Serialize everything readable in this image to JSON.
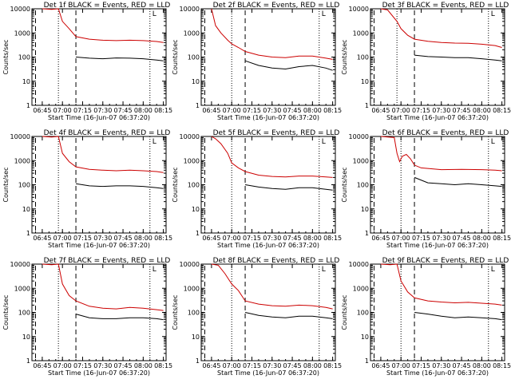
{
  "colors": {
    "events": "#000000",
    "lld": "#cc0000",
    "axis": "#000000",
    "background": "#ffffff"
  },
  "chart_data": [
    {
      "type": "line",
      "title": "Det 1f BLACK = Events, RED = LLD",
      "xlabel": "Start Time (16-Jun-07 06:37:20)",
      "ylabel": "Counts/sec",
      "y_scale": "log",
      "ylim": [
        1,
        10000
      ],
      "x_tick_labels": [
        "06:45",
        "07:00",
        "07:15",
        "07:30",
        "07:45",
        "08:00",
        "08:15"
      ],
      "y_tick_labels": [
        "1",
        "10",
        "100",
        "1000",
        "10000"
      ],
      "corner_mark": "L",
      "markers": {
        "dotted": [
          "06:57",
          "08:05"
        ],
        "dashed": [
          "06:40",
          "07:10"
        ]
      },
      "series": [
        {
          "name": "Events",
          "color": "#000000",
          "x": [
            "07:10",
            "07:20",
            "07:30",
            "07:40",
            "07:50",
            "08:00",
            "08:10",
            "08:15"
          ],
          "y": [
            100,
            90,
            85,
            92,
            90,
            85,
            75,
            70
          ]
        },
        {
          "name": "LLD",
          "color": "#cc0000",
          "x": [
            "06:45",
            "06:52",
            "06:57",
            "07:00",
            "07:05",
            "07:10",
            "07:20",
            "07:30",
            "07:40",
            "07:50",
            "08:00",
            "08:10",
            "08:15"
          ],
          "y": [
            10000,
            9500,
            10000,
            3000,
            1500,
            700,
            550,
            500,
            480,
            500,
            480,
            440,
            400
          ]
        }
      ]
    },
    {
      "type": "line",
      "title": "Det 2f BLACK = Events, RED = LLD",
      "xlabel": "Start Time (16-Jun-07 06:37:20)",
      "ylabel": "Counts/sec",
      "y_scale": "log",
      "ylim": [
        1,
        10000
      ],
      "x_tick_labels": [
        "06:45",
        "07:00",
        "07:15",
        "07:30",
        "07:45",
        "08:00",
        "08:15"
      ],
      "y_tick_labels": [
        "1",
        "10",
        "100",
        "1000",
        "10000"
      ],
      "corner_mark": "L",
      "markers": {
        "dotted": [
          "07:00",
          "08:05"
        ],
        "dashed": [
          "06:40",
          "07:10"
        ]
      },
      "series": [
        {
          "name": "Events",
          "color": "#000000",
          "x": [
            "07:10",
            "07:20",
            "07:30",
            "07:40",
            "07:50",
            "08:00",
            "08:10",
            "08:15"
          ],
          "y": [
            70,
            45,
            35,
            32,
            40,
            45,
            35,
            28
          ]
        },
        {
          "name": "LLD",
          "color": "#cc0000",
          "x": [
            "06:45",
            "06:48",
            "06:52",
            "06:57",
            "07:00",
            "07:05",
            "07:10",
            "07:20",
            "07:30",
            "07:40",
            "07:50",
            "08:00",
            "08:10",
            "08:15"
          ],
          "y": [
            10000,
            2000,
            1000,
            500,
            350,
            250,
            170,
            120,
            100,
            95,
            110,
            110,
            90,
            80
          ]
        }
      ]
    },
    {
      "type": "line",
      "title": "Det 3f BLACK = Events, RED = LLD",
      "xlabel": "Start Time (16-Jun-07 06:37:20)",
      "ylabel": "Counts/sec",
      "y_scale": "log",
      "ylim": [
        1,
        10000
      ],
      "x_tick_labels": [
        "06:45",
        "07:00",
        "07:15",
        "07:30",
        "07:45",
        "08:00",
        "08:15"
      ],
      "y_tick_labels": [
        "1",
        "10",
        "100",
        "1000",
        "10000"
      ],
      "corner_mark": "L",
      "markers": {
        "dotted": [
          "06:57",
          "08:05"
        ],
        "dashed": [
          "06:40",
          "07:10"
        ]
      },
      "series": [
        {
          "name": "Events",
          "color": "#000000",
          "x": [
            "07:10",
            "07:20",
            "07:30",
            "07:40",
            "07:50",
            "08:00",
            "08:10",
            "08:15"
          ],
          "y": [
            120,
            105,
            100,
            95,
            95,
            85,
            75,
            70
          ]
        },
        {
          "name": "LLD",
          "color": "#cc0000",
          "x": [
            "06:45",
            "06:50",
            "06:57",
            "07:00",
            "07:05",
            "07:10",
            "07:20",
            "07:30",
            "07:40",
            "07:50",
            "08:00",
            "08:10",
            "08:15"
          ],
          "y": [
            10000,
            9000,
            3000,
            1500,
            800,
            550,
            450,
            400,
            380,
            370,
            340,
            300,
            250
          ]
        }
      ]
    },
    {
      "type": "line",
      "title": "Det 4f BLACK = Events, RED = LLD",
      "xlabel": "Start Time (16-Jun-07 06:37:20)",
      "ylabel": "Counts/sec",
      "y_scale": "log",
      "ylim": [
        1,
        10000
      ],
      "x_tick_labels": [
        "06:45",
        "07:00",
        "07:15",
        "07:30",
        "07:45",
        "08:00",
        "08:15"
      ],
      "y_tick_labels": [
        "1",
        "10",
        "100",
        "1000",
        "10000"
      ],
      "corner_mark": "L",
      "markers": {
        "dotted": [
          "06:57",
          "08:05"
        ],
        "dashed": [
          "06:40",
          "07:10"
        ]
      },
      "series": [
        {
          "name": "Events",
          "color": "#000000",
          "x": [
            "07:10",
            "07:20",
            "07:30",
            "07:40",
            "07:50",
            "08:00",
            "08:10",
            "08:15"
          ],
          "y": [
            110,
            90,
            85,
            90,
            90,
            85,
            75,
            70
          ]
        },
        {
          "name": "LLD",
          "color": "#cc0000",
          "x": [
            "06:45",
            "06:52",
            "06:57",
            "07:00",
            "07:05",
            "07:10",
            "07:20",
            "07:30",
            "07:40",
            "07:50",
            "08:00",
            "08:10",
            "08:15"
          ],
          "y": [
            10000,
            9500,
            10000,
            2000,
            900,
            550,
            430,
            400,
            380,
            400,
            380,
            350,
            320
          ]
        }
      ]
    },
    {
      "type": "line",
      "title": "Det 5f BLACK = Events, RED = LLD",
      "xlabel": "Start Time (16-Jun-07 06:37:20)",
      "ylabel": "Counts/sec",
      "y_scale": "log",
      "ylim": [
        1,
        10000
      ],
      "x_tick_labels": [
        "06:45",
        "07:00",
        "07:15",
        "07:30",
        "07:45",
        "08:00",
        "08:15"
      ],
      "y_tick_labels": [
        "1",
        "10",
        "100",
        "1000",
        "10000"
      ],
      "corner_mark": "L",
      "markers": {
        "dotted": [
          "07:00",
          "08:05"
        ],
        "dashed": [
          "06:40",
          "07:10"
        ]
      },
      "series": [
        {
          "name": "Events",
          "color": "#000000",
          "x": [
            "07:10",
            "07:20",
            "07:30",
            "07:40",
            "07:50",
            "08:00",
            "08:10",
            "08:15"
          ],
          "y": [
            100,
            80,
            70,
            65,
            75,
            75,
            65,
            60
          ]
        },
        {
          "name": "LLD",
          "color": "#cc0000",
          "x": [
            "06:45",
            "06:48",
            "06:52",
            "06:57",
            "07:00",
            "07:05",
            "07:10",
            "07:20",
            "07:30",
            "07:40",
            "07:50",
            "08:00",
            "08:10",
            "08:15"
          ],
          "y": [
            10000,
            8000,
            5000,
            2000,
            800,
            500,
            350,
            250,
            220,
            210,
            230,
            230,
            210,
            200
          ]
        }
      ]
    },
    {
      "type": "line",
      "title": "Det 6f BLACK = Events, RED = LLD",
      "xlabel": "Start Time (16-Jun-07 06:37:20)",
      "ylabel": "Counts/sec",
      "y_scale": "log",
      "ylim": [
        1,
        10000
      ],
      "x_tick_labels": [
        "06:45",
        "07:00",
        "07:15",
        "07:30",
        "07:45",
        "08:00",
        "08:15"
      ],
      "y_tick_labels": [
        "1",
        "10",
        "100",
        "1000",
        "10000"
      ],
      "corner_mark": "L",
      "markers": {
        "dotted": [
          "07:00",
          "08:05"
        ],
        "dashed": [
          "06:40",
          "07:10"
        ]
      },
      "series": [
        {
          "name": "Events",
          "color": "#000000",
          "x": [
            "07:10",
            "07:20",
            "07:30",
            "07:40",
            "07:50",
            "08:00",
            "08:10",
            "08:15"
          ],
          "y": [
            200,
            120,
            110,
            100,
            110,
            100,
            90,
            85
          ]
        },
        {
          "name": "LLD",
          "color": "#cc0000",
          "x": [
            "06:45",
            "06:55",
            "06:57",
            "06:59",
            "07:01",
            "07:04",
            "07:07",
            "07:10",
            "07:15",
            "07:30",
            "07:45",
            "08:00",
            "08:10",
            "08:15"
          ],
          "y": [
            10000,
            9000,
            2000,
            900,
            1500,
            1800,
            1200,
            650,
            500,
            420,
            430,
            420,
            400,
            380
          ]
        }
      ]
    },
    {
      "type": "line",
      "title": "Det 7f BLACK = Events, RED = LLD",
      "xlabel": "Start Time (16-Jun-07 06:37:20)",
      "ylabel": "Counts/sec",
      "y_scale": "log",
      "ylim": [
        1,
        10000
      ],
      "x_tick_labels": [
        "06:45",
        "07:00",
        "07:15",
        "07:30",
        "07:45",
        "08:00",
        "08:15"
      ],
      "y_tick_labels": [
        "1",
        "10",
        "100",
        "1000",
        "10000"
      ],
      "corner_mark": "L",
      "markers": {
        "dotted": [
          "06:57",
          "08:05"
        ],
        "dashed": [
          "06:40",
          "07:10"
        ]
      },
      "series": [
        {
          "name": "Events",
          "color": "#000000",
          "x": [
            "07:10",
            "07:20",
            "07:30",
            "07:40",
            "07:50",
            "08:00",
            "08:10",
            "08:15"
          ],
          "y": [
            85,
            60,
            55,
            55,
            60,
            60,
            55,
            50
          ]
        },
        {
          "name": "LLD",
          "color": "#cc0000",
          "x": [
            "06:45",
            "06:52",
            "06:57",
            "07:00",
            "07:05",
            "07:10",
            "07:20",
            "07:30",
            "07:40",
            "07:50",
            "08:00",
            "08:10",
            "08:15"
          ],
          "y": [
            10000,
            9500,
            10000,
            1500,
            500,
            300,
            180,
            150,
            140,
            160,
            150,
            130,
            120
          ]
        }
      ]
    },
    {
      "type": "line",
      "title": "Det 8f BLACK = Events, RED = LLD",
      "xlabel": "Start Time (16-Jun-07 06:37:20)",
      "ylabel": "Counts/sec",
      "y_scale": "log",
      "ylim": [
        1,
        10000
      ],
      "x_tick_labels": [
        "06:45",
        "07:00",
        "07:15",
        "07:30",
        "07:45",
        "08:00",
        "08:15"
      ],
      "y_tick_labels": [
        "1",
        "10",
        "100",
        "1000",
        "10000"
      ],
      "corner_mark": "L",
      "markers": {
        "dotted": [
          "07:00",
          "08:05"
        ],
        "dashed": [
          "06:40",
          "07:10"
        ]
      },
      "series": [
        {
          "name": "Events",
          "color": "#000000",
          "x": [
            "07:10",
            "07:20",
            "07:30",
            "07:40",
            "07:50",
            "08:00",
            "08:10",
            "08:15"
          ],
          "y": [
            100,
            75,
            65,
            60,
            70,
            70,
            60,
            55
          ]
        },
        {
          "name": "LLD",
          "color": "#cc0000",
          "x": [
            "06:45",
            "06:50",
            "06:55",
            "07:00",
            "07:05",
            "07:10",
            "07:20",
            "07:30",
            "07:40",
            "07:50",
            "08:00",
            "08:10",
            "08:15"
          ],
          "y": [
            10000,
            9000,
            4000,
            1500,
            800,
            300,
            220,
            190,
            180,
            200,
            190,
            160,
            140
          ]
        }
      ]
    },
    {
      "type": "line",
      "title": "Det 9f BLACK = Events, RED = LLD",
      "xlabel": "Start Time (16-Jun-07 06:37:20)",
      "ylabel": "Counts/sec",
      "y_scale": "log",
      "ylim": [
        1,
        10000
      ],
      "x_tick_labels": [
        "06:45",
        "07:00",
        "07:15",
        "07:30",
        "07:45",
        "08:00",
        "08:15"
      ],
      "y_tick_labels": [
        "1",
        "10",
        "100",
        "1000",
        "10000"
      ],
      "corner_mark": "L",
      "markers": {
        "dotted": [
          "07:00",
          "08:05"
        ],
        "dashed": [
          "06:40",
          "07:10"
        ]
      },
      "series": [
        {
          "name": "Events",
          "color": "#000000",
          "x": [
            "07:10",
            "07:20",
            "07:30",
            "07:40",
            "07:50",
            "08:00",
            "08:10",
            "08:15"
          ],
          "y": [
            100,
            85,
            70,
            60,
            65,
            60,
            55,
            50
          ]
        },
        {
          "name": "LLD",
          "color": "#cc0000",
          "x": [
            "06:45",
            "06:52",
            "06:57",
            "07:00",
            "07:05",
            "07:10",
            "07:20",
            "07:30",
            "07:40",
            "07:50",
            "08:00",
            "08:10",
            "08:15"
          ],
          "y": [
            10000,
            9500,
            10000,
            2000,
            700,
            400,
            300,
            270,
            250,
            260,
            240,
            220,
            200
          ]
        }
      ]
    }
  ]
}
